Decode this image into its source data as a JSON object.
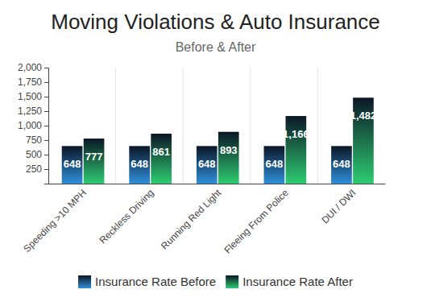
{
  "chart_data": {
    "type": "bar",
    "title": "Moving Violations & Auto Insurance",
    "subtitle": "Before & After",
    "categories": [
      "Speeding >10 MPH",
      "Reckless Driving",
      "Running Red Light",
      "Fleeing From Police",
      "DUI / DWI"
    ],
    "series": [
      {
        "name": "Insurance Rate Before",
        "color": "#2f8fd8",
        "values": [
          648,
          648,
          648,
          648,
          648
        ]
      },
      {
        "name": "Insurance Rate After",
        "color": "#2ecc71",
        "values": [
          777,
          861,
          893,
          1166,
          1482
        ],
        "value_labels": [
          "777",
          "861",
          "893",
          "1,166",
          "1,482"
        ]
      }
    ],
    "ylim": [
      0,
      2000
    ],
    "yticks": [
      250,
      500,
      750,
      {
        "value": 1000,
        "label": "1,000"
      },
      {
        "value": 1250,
        "label": "1,250"
      },
      {
        "value": 1500,
        "label": "1,500"
      },
      {
        "value": 1750,
        "label": "1,750"
      },
      {
        "value": 2000,
        "label": "2,000"
      }
    ],
    "data_labels": true,
    "legend": "bottom"
  }
}
